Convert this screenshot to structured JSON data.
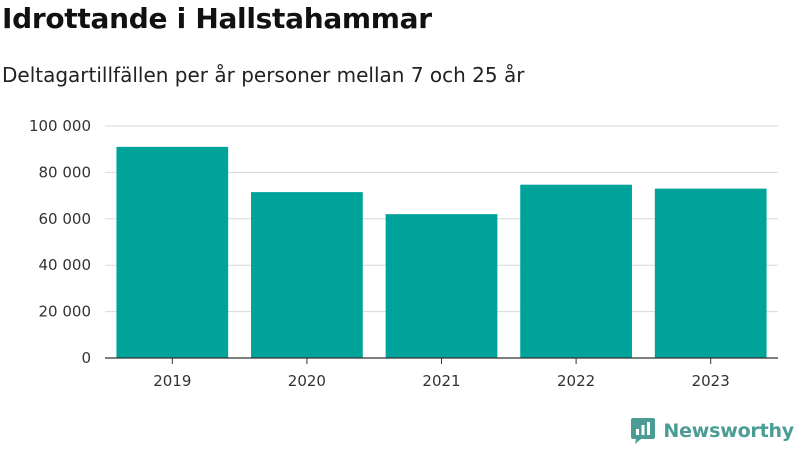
{
  "chart_data": {
    "type": "bar",
    "title": "Idrottande i Hallstahammar",
    "subtitle": "Deltagartillfällen per år personer mellan 7 och 25 år",
    "categories": [
      "2019",
      "2020",
      "2021",
      "2022",
      "2023"
    ],
    "values": [
      91000,
      71500,
      62000,
      74700,
      73000
    ],
    "ylim": [
      0,
      100000
    ],
    "yticks": [
      0,
      20000,
      40000,
      60000,
      80000,
      100000
    ],
    "ytick_labels": [
      "0",
      "20 000",
      "40 000",
      "60 000",
      "80 000",
      "100 000"
    ],
    "grid": true,
    "bar_color": "#00a39a"
  },
  "brand": {
    "name": "Newsworthy",
    "icon": "newsworthy-logo-icon",
    "color": "#4a9c95"
  }
}
